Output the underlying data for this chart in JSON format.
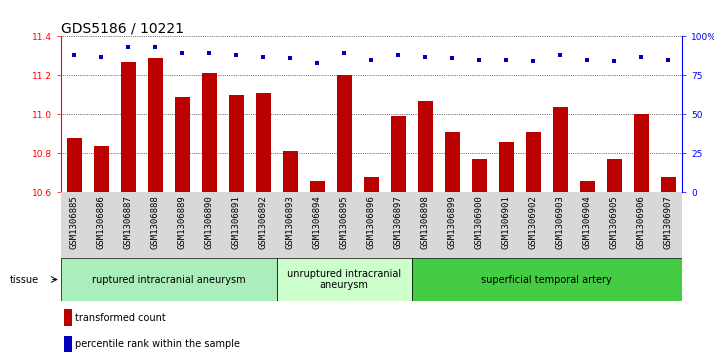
{
  "title": "GDS5186 / 10221",
  "samples": [
    "GSM1306885",
    "GSM1306886",
    "GSM1306887",
    "GSM1306888",
    "GSM1306889",
    "GSM1306890",
    "GSM1306891",
    "GSM1306892",
    "GSM1306893",
    "GSM1306894",
    "GSM1306895",
    "GSM1306896",
    "GSM1306897",
    "GSM1306898",
    "GSM1306899",
    "GSM1306900",
    "GSM1306901",
    "GSM1306902",
    "GSM1306903",
    "GSM1306904",
    "GSM1306905",
    "GSM1306906",
    "GSM1306907"
  ],
  "transformed_count": [
    10.88,
    10.84,
    11.27,
    11.29,
    11.09,
    11.21,
    11.1,
    11.11,
    10.81,
    10.66,
    11.2,
    10.68,
    10.99,
    11.07,
    10.91,
    10.77,
    10.86,
    10.91,
    11.04,
    10.66,
    10.77,
    11.0,
    10.68
  ],
  "percentile_rank": [
    88,
    87,
    93,
    93,
    89,
    89,
    88,
    87,
    86,
    83,
    89,
    85,
    88,
    87,
    86,
    85,
    85,
    84,
    88,
    85,
    84,
    87,
    85
  ],
  "ylim_left": [
    10.6,
    11.4
  ],
  "ylim_right": [
    0,
    100
  ],
  "yticks_left": [
    10.6,
    10.8,
    11.0,
    11.2,
    11.4
  ],
  "yticks_right": [
    0,
    25,
    50,
    75,
    100
  ],
  "ytick_labels_right": [
    "0",
    "25",
    "50",
    "75",
    "100%"
  ],
  "bar_color": "#bb0000",
  "dot_color": "#0000bb",
  "grid_color": "#000000",
  "tissue_groups": [
    {
      "label": "ruptured intracranial aneurysm",
      "start": 0,
      "end": 8,
      "color": "#aaeebb"
    },
    {
      "label": "unruptured intracranial\naneurysm",
      "start": 8,
      "end": 13,
      "color": "#ccffcc"
    },
    {
      "label": "superficial temporal artery",
      "start": 13,
      "end": 23,
      "color": "#44cc44"
    }
  ],
  "tissue_label": "tissue",
  "legend_bar_label": "transformed count",
  "legend_dot_label": "percentile rank within the sample",
  "plot_bg_color": "#ffffff",
  "xticklabel_bg": "#d8d8d8",
  "title_fontsize": 10,
  "tick_fontsize": 6.5,
  "tissue_fontsize": 7
}
